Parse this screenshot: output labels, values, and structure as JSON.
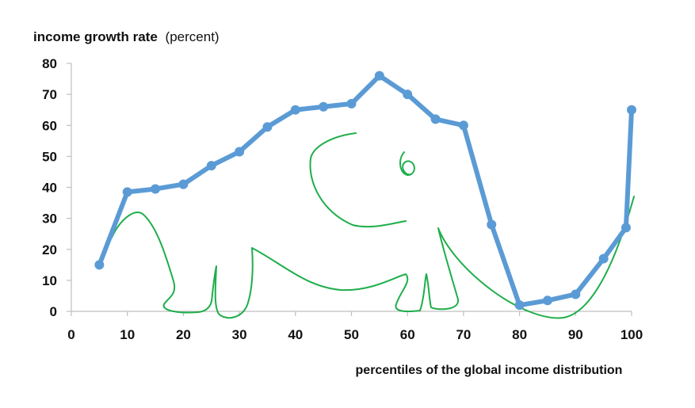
{
  "chart_data": {
    "type": "line",
    "title_bold": "income growth rate",
    "title_rest": "(percent)",
    "xlabel": "percentiles of the global income distribution",
    "ylabel": "",
    "xlim": [
      0,
      100
    ],
    "ylim": [
      0,
      80
    ],
    "x_ticks": [
      0,
      10,
      20,
      30,
      40,
      50,
      60,
      70,
      80,
      90,
      100
    ],
    "y_ticks": [
      0,
      10,
      20,
      30,
      40,
      50,
      60,
      70,
      80
    ],
    "grid": false,
    "legend": "none",
    "series_color": "#5b9bd5",
    "annotation_color": "#1fae4b",
    "annotation": "hand-drawn elephant outline over the curve",
    "series": [
      {
        "points": [
          [
            5,
            15
          ],
          [
            10,
            38.5
          ],
          [
            15,
            39.5
          ],
          [
            20,
            41
          ],
          [
            25,
            47
          ],
          [
            30,
            51.5
          ],
          [
            35,
            59.5
          ],
          [
            40,
            65
          ],
          [
            45,
            66
          ],
          [
            50,
            67
          ],
          [
            55,
            76
          ],
          [
            60,
            70
          ],
          [
            65,
            62
          ],
          [
            70,
            60
          ],
          [
            75,
            28
          ],
          [
            80,
            2
          ],
          [
            85,
            3.5
          ],
          [
            90,
            5.5
          ],
          [
            95,
            17
          ],
          [
            99,
            27
          ],
          [
            100,
            65
          ]
        ]
      }
    ]
  }
}
